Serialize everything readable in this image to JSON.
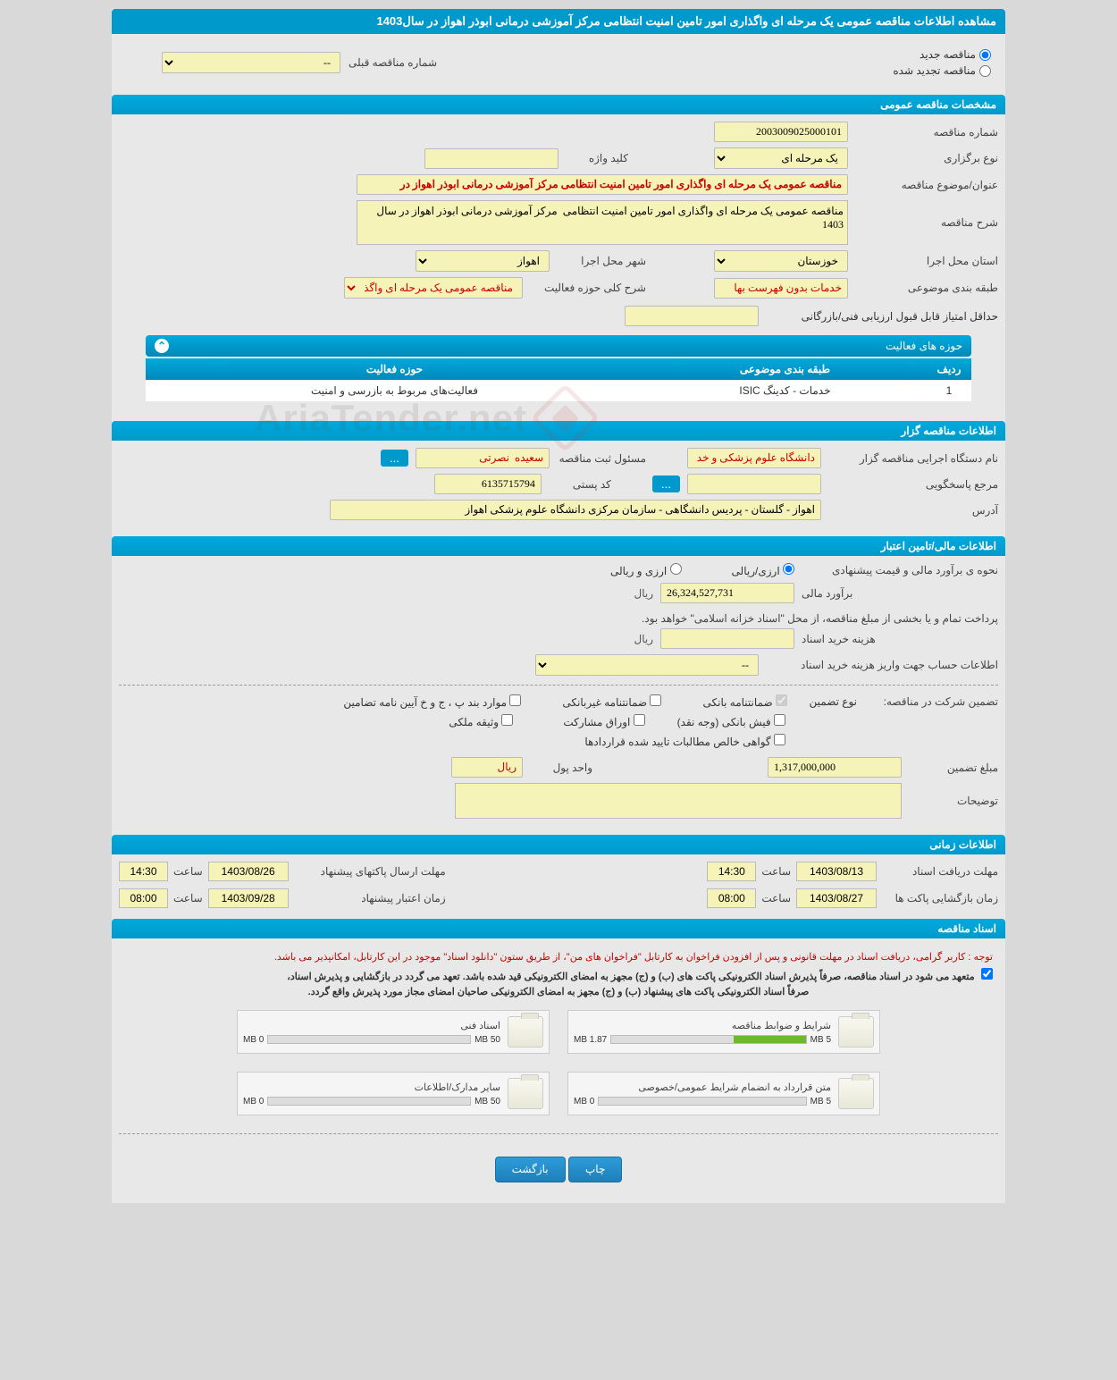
{
  "page_title": "مشاهده اطلاعات مناقصه عمومی یک مرحله ای واگذاری امور تامین امنیت انتظامی مرکز آموزشی درمانی ابوذر اهواز در سال1403",
  "radio": {
    "new_tender": "مناقصه جدید",
    "renewed_tender": "مناقصه تجدید شده",
    "prev_number_label": "شماره مناقصه قبلی",
    "prev_number_value": "--"
  },
  "sections": {
    "general": "مشخصات مناقصه عمومی",
    "organizer": "اطلاعات مناقصه گزار",
    "financial": "اطلاعات مالی/تامین اعتبار",
    "timing": "اطلاعات زمانی",
    "docs": "اسناد مناقصه"
  },
  "general": {
    "tender_no_label": "شماره مناقصه",
    "tender_no": "2003009025000101",
    "holding_type_label": "نوع برگزاری",
    "holding_type": "یک مرحله ای",
    "keyword_label": "کلید واژه",
    "keyword": "",
    "title_label": "عنوان/موضوع مناقصه",
    "title": "مناقصه عمومی یک مرحله ای واگذاری امور تامین امنیت انتظامی مرکز آموزشی درمانی ابوذر اهواز در",
    "desc_label": "شرح مناقصه",
    "desc": "مناقصه عمومی یک مرحله ای واگذاری امور تامین امنیت انتظامی  مرکز آموزشی درمانی ابوذر اهواز در سال 1403",
    "province_label": "استان محل اجرا",
    "province": "خوزستان",
    "city_label": "شهر محل اجرا",
    "city": "اهواز",
    "category_label": "طبقه بندی موضوعی",
    "category": "خدمات بدون فهرست بها",
    "activity_area_label": "شرح کلی حوزه فعالیت",
    "activity_area": "مناقصه عمومی یک مرحله ای واگذاری امور تامین",
    "min_score_label": "حداقل امتیاز قابل قبول ارزیابی فنی/بازرگانی",
    "min_score": ""
  },
  "activities": {
    "header": "حوزه های فعالیت",
    "cols": {
      "row": "ردیف",
      "category": "طبقه بندی موضوعی",
      "area": "حوزه فعالیت"
    },
    "rows": [
      {
        "row": "1",
        "category": "خدمات - کدینگ ISIC",
        "area": "فعالیت‌های مربوط به بازرسی و امنیت"
      }
    ]
  },
  "organizer": {
    "exec_name_label": "نام دستگاه اجرایی مناقصه گزار",
    "exec_name": "دانشگاه علوم پزشکی و خد",
    "registrar_label": "مسئول ثبت مناقصه",
    "registrar": "سعیده  نصرتی",
    "dots": "...",
    "responder_label": "مرجع پاسخگویی",
    "responder": "",
    "dots2": "...",
    "postal_label": "کد پستی",
    "postal": "6135715794",
    "address_label": "آدرس",
    "address": "اهواز - گلستان - پردیس دانشگاهی - سازمان مرکزی دانشگاه علوم پزشکی اهواز"
  },
  "financial": {
    "est_method_label": "نحوه ی برآورد مالی و قیمت پیشنهادی",
    "opt_rial": "ارزی/ریالی",
    "opt_currency": "ارزی و ریالی",
    "est_label": "برآورد مالی",
    "est_value": "26,324,527,731",
    "unit_rial": "ریال",
    "note": "پرداخت تمام و یا بخشی از مبلغ مناقصه، از محل \"اسناد خزانه اسلامی\" خواهد بود.",
    "doc_cost_label": "هزینه خرید اسناد",
    "doc_cost": "",
    "acct_label": "اطلاعات حساب جهت واریز هزینه خرید اسناد",
    "acct_value": "--",
    "guarantee_title": "تضمین شرکت در مناقصه:",
    "gtype_label": "نوع تضمین",
    "g1": "ضمانتنامه بانکی",
    "g2": "ضمانتنامه غیربانکی",
    "g3": "موارد بند پ ، ج و خ آیین نامه تضامین",
    "g4": "فیش بانکی (وجه نقد)",
    "g5": "اوراق مشارکت",
    "g6": "وثیقه ملکی",
    "g7": "گواهی خالص مطالبات تایید شده قراردادها",
    "gamount_label": "مبلغ تضمین",
    "gamount": "1,317,000,000",
    "gunit_label": "واحد پول",
    "gunit": "ریال",
    "explain_label": "توضیحات"
  },
  "timing": {
    "receive_docs": "مهلت دریافت اسناد",
    "receive_docs_date": "1403/08/13",
    "receive_docs_time_l": "ساعت",
    "receive_docs_time": "14:30",
    "send_packets": "مهلت ارسال پاکتهای پیشنهاد",
    "send_packets_date": "1403/08/26",
    "send_packets_time_l": "ساعت",
    "send_packets_time": "14:30",
    "open_packets": "زمان بازگشایی پاکت ها",
    "open_packets_date": "1403/08/27",
    "open_packets_time_l": "ساعت",
    "open_packets_time": "08:00",
    "validity": "زمان اعتبار پیشنهاد",
    "validity_date": "1403/09/28",
    "validity_time_l": "ساعت",
    "validity_time": "08:00"
  },
  "docs": {
    "red_note": "توجه : کاربر گرامی، دریافت اسناد در مهلت قانونی و پس از افزودن فراخوان به کارتابل \"فراخوان های من\"، از طریق ستون \"دانلود اسناد\" موجود در این کارتابل، امکانپذیر می باشد.",
    "bold_note1": "متعهد می شود در اسناد مناقصه، صرفاً پذیرش اسناد الکترونیکی پاکت های (ب) و (ج) مجهز به امضای الکترونیکی قید شده باشد. تعهد می گردد در بازگشایی و پذیرش اسناد،",
    "bold_note2": "صرفاً اسناد الکترونیکی پاکت های پیشنهاد (ب) و (ج) مجهز به امضای الکترونیکی صاحبان امضای مجاز مورد پذیرش واقع گردد.",
    "items": [
      {
        "title": "شرایط و ضوابط مناقصه",
        "used": "1.87 MB",
        "total": "5 MB",
        "pct": 37
      },
      {
        "title": "اسناد فنی",
        "used": "0 MB",
        "total": "50 MB",
        "pct": 0
      },
      {
        "title": "متن قرارداد به انضمام شرایط عمومی/خصوصی",
        "used": "0 MB",
        "total": "5 MB",
        "pct": 0
      },
      {
        "title": "سایر مدارک/اطلاعات",
        "used": "0 MB",
        "total": "50 MB",
        "pct": 0
      }
    ]
  },
  "buttons": {
    "print": "چاپ",
    "back": "بازگشت"
  },
  "watermark": "AriaTender.net",
  "colors": {
    "header": "#0099cc",
    "accent": "#00aadd",
    "input_bg": "#f5f3b8",
    "red": "#cc0000",
    "button": "#2d9cdb",
    "progress": "#6eb82e"
  }
}
